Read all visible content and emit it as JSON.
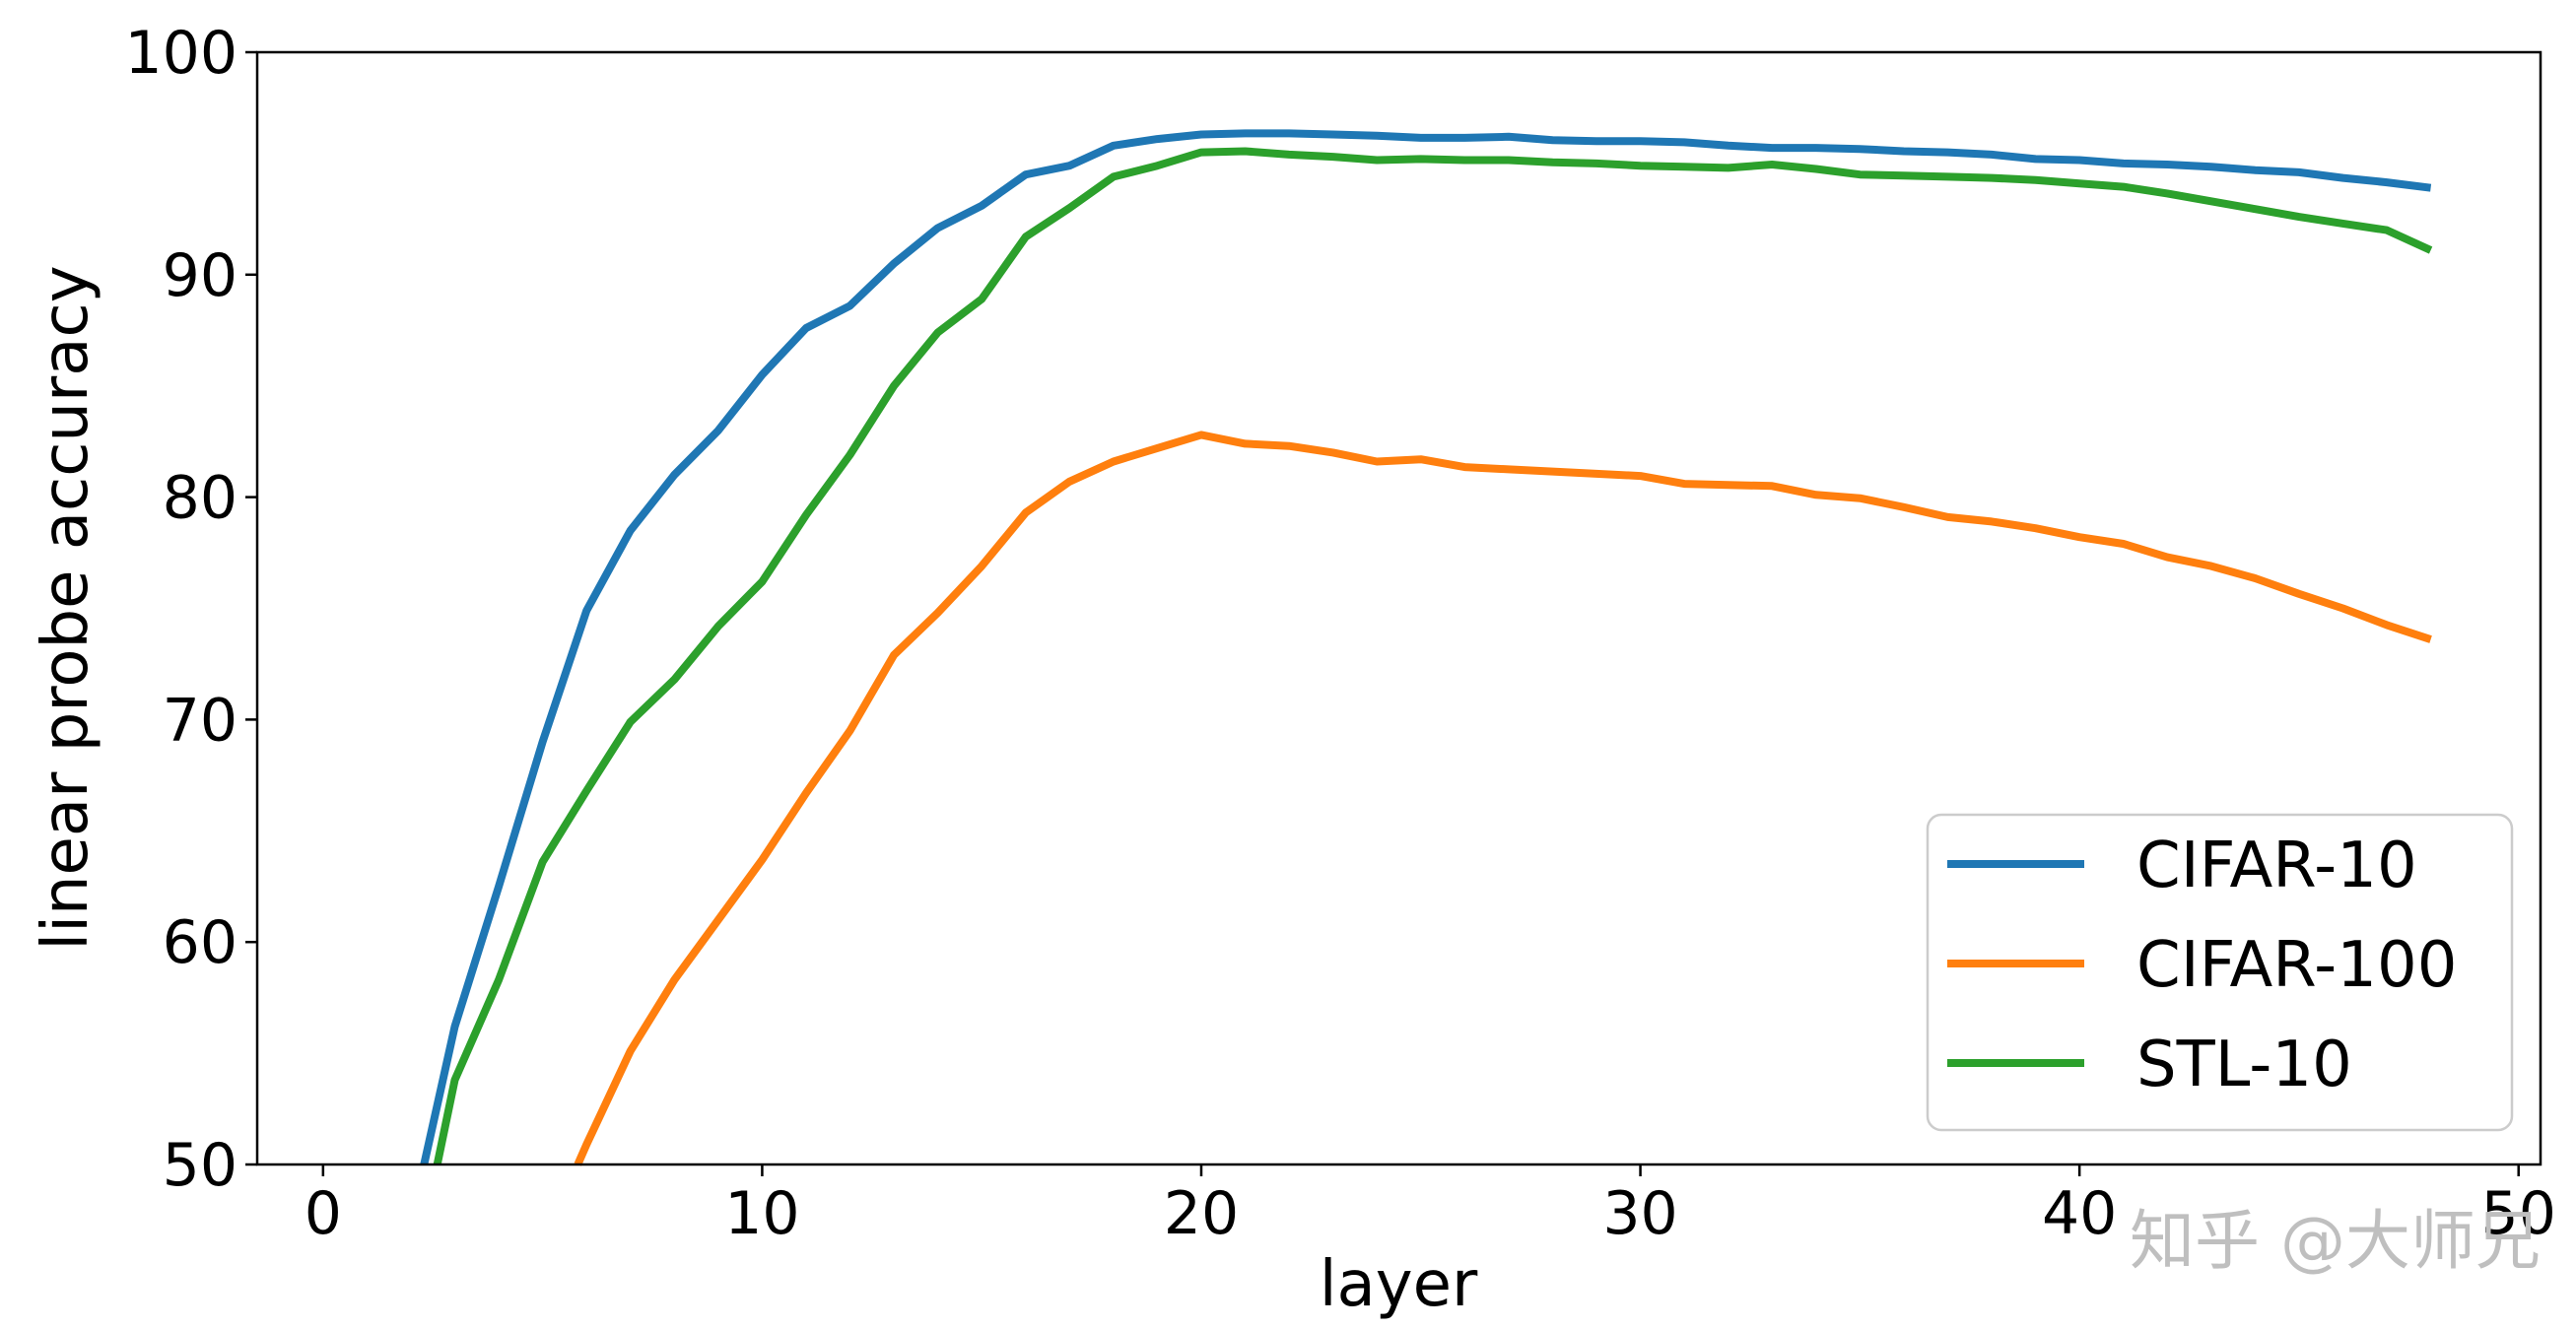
{
  "chart_data": {
    "type": "line",
    "title": "",
    "xlabel": "layer",
    "ylabel": "linear probe accuracy",
    "xlim": [
      -1.5,
      50.5
    ],
    "ylim": [
      50,
      100
    ],
    "xticks": [
      "0",
      "10",
      "20",
      "30",
      "40",
      "50"
    ],
    "yticks": [
      "50",
      "60",
      "70",
      "80",
      "90",
      "100"
    ],
    "grid": false,
    "legend_position": "bottom-right",
    "series": [
      {
        "name": "CIFAR-10",
        "color": "#1f77b4",
        "x": [
          2.3,
          3,
          4,
          5,
          6,
          7,
          8,
          9,
          10,
          11,
          12,
          13,
          14,
          15,
          16,
          17,
          18,
          19,
          20,
          21,
          22,
          23,
          24,
          25,
          26,
          27,
          28,
          29,
          30,
          31,
          32,
          33,
          34,
          35,
          36,
          37,
          38,
          39,
          40,
          41,
          42,
          43,
          44,
          45,
          46,
          47,
          48
        ],
        "y": [
          50,
          56.2,
          62.5,
          69.0,
          74.9,
          78.5,
          81.0,
          83.0,
          85.5,
          87.6,
          88.6,
          90.5,
          92.1,
          93.1,
          94.5,
          94.9,
          95.8,
          96.1,
          96.3,
          96.35,
          96.35,
          96.3,
          96.25,
          96.15,
          96.15,
          96.2,
          96.05,
          96.0,
          96.0,
          95.95,
          95.8,
          95.7,
          95.7,
          95.65,
          95.55,
          95.5,
          95.4,
          95.2,
          95.15,
          95.0,
          94.95,
          94.85,
          94.7,
          94.6,
          94.35,
          94.15,
          93.9
        ]
      },
      {
        "name": "CIFAR-100",
        "color": "#ff7f0e",
        "x": [
          5.8,
          6,
          7,
          8,
          9,
          10,
          11,
          12,
          13,
          14,
          15,
          16,
          17,
          18,
          19,
          20,
          21,
          22,
          23,
          24,
          25,
          26,
          27,
          28,
          29,
          30,
          31,
          32,
          33,
          34,
          35,
          36,
          37,
          38,
          39,
          40,
          41,
          42,
          43,
          44,
          45,
          46,
          47,
          48
        ],
        "y": [
          50,
          50.9,
          55.1,
          58.3,
          61.0,
          63.7,
          66.7,
          69.5,
          72.9,
          74.8,
          76.9,
          79.3,
          80.7,
          81.6,
          82.2,
          82.8,
          82.4,
          82.3,
          82.0,
          81.6,
          81.7,
          81.35,
          81.25,
          81.15,
          81.05,
          80.95,
          80.6,
          80.55,
          80.5,
          80.1,
          79.95,
          79.55,
          79.1,
          78.9,
          78.6,
          78.2,
          77.9,
          77.3,
          76.9,
          76.35,
          75.65,
          75.0,
          74.25,
          73.6
        ]
      },
      {
        "name": "STL-10",
        "color": "#2ca02c",
        "x": [
          2.6,
          3,
          4,
          5,
          6,
          7,
          8,
          9,
          10,
          11,
          12,
          13,
          14,
          15,
          16,
          17,
          18,
          19,
          20,
          21,
          22,
          23,
          24,
          25,
          26,
          27,
          28,
          29,
          30,
          31,
          32,
          33,
          34,
          35,
          36,
          37,
          38,
          39,
          40,
          41,
          42,
          43,
          44,
          45,
          46,
          47,
          48
        ],
        "y": [
          50,
          53.8,
          58.3,
          63.6,
          66.8,
          69.9,
          71.8,
          74.2,
          76.2,
          79.2,
          81.9,
          85.0,
          87.4,
          88.9,
          91.7,
          93.0,
          94.4,
          94.9,
          95.5,
          95.55,
          95.4,
          95.3,
          95.15,
          95.2,
          95.15,
          95.15,
          95.05,
          95.0,
          94.9,
          94.85,
          94.8,
          94.95,
          94.75,
          94.5,
          94.45,
          94.4,
          94.35,
          94.25,
          94.1,
          93.95,
          93.65,
          93.3,
          92.95,
          92.6,
          92.3,
          92.0,
          91.1
        ]
      }
    ]
  },
  "watermark": {
    "text": "知乎 @大师兄"
  }
}
